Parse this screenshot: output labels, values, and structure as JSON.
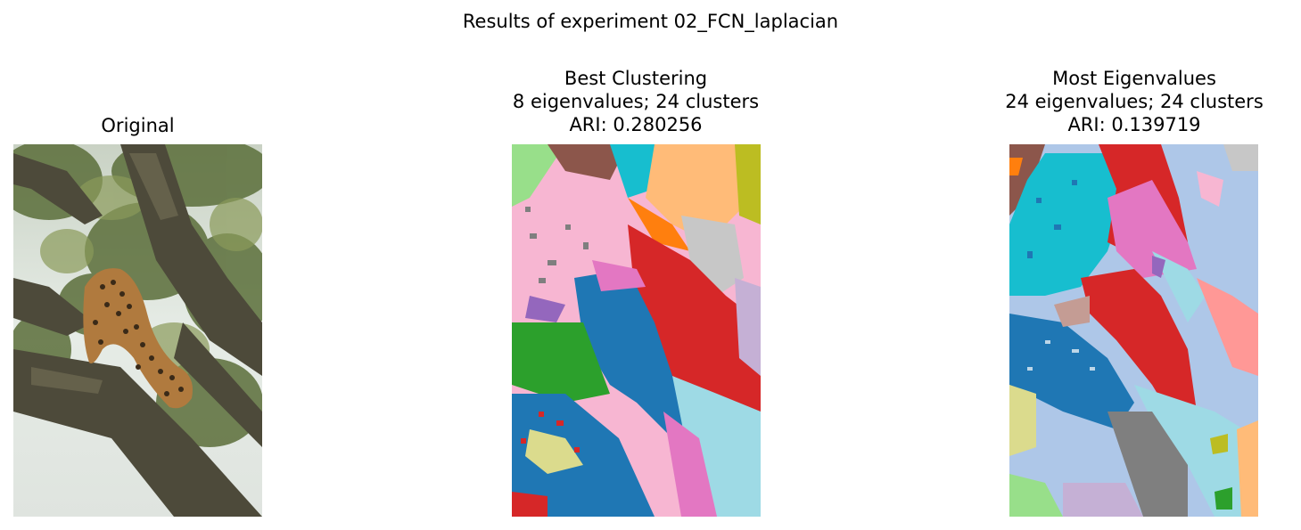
{
  "figure": {
    "title": "Results of experiment 02_FCN_laplacian"
  },
  "panels": [
    {
      "lines": [
        "Original"
      ]
    },
    {
      "lines": [
        "Best Clustering",
        "8 eigenvalues; 24 clusters",
        "ARI: 0.280256"
      ]
    },
    {
      "lines": [
        "Most Eigenvalues",
        "24 eigenvalues; 24 clusters",
        "ARI: 0.139719"
      ]
    }
  ],
  "colors": {
    "tab_blue": "#1f77b4",
    "tab_orange": "#ff7f0e",
    "tab_green": "#2ca02c",
    "tab_red": "#d62728",
    "tab_purple": "#9467bd",
    "tab_brown": "#8c564b",
    "tab_pink": "#e377c2",
    "tab_gray": "#7f7f7f",
    "tab_olive": "#bcbd22",
    "tab_cyan": "#17becf",
    "light_blue": "#aec7e8",
    "light_pink": "#f7b6d2",
    "light_cyan": "#9edae5",
    "light_green": "#98df8a",
    "light_orange": "#ffbb78",
    "light_red": "#ff9896",
    "khaki": "#dbdb8d",
    "silver": "#c7c7c7",
    "lavender": "#c5b0d5",
    "tan": "#c49c94"
  }
}
